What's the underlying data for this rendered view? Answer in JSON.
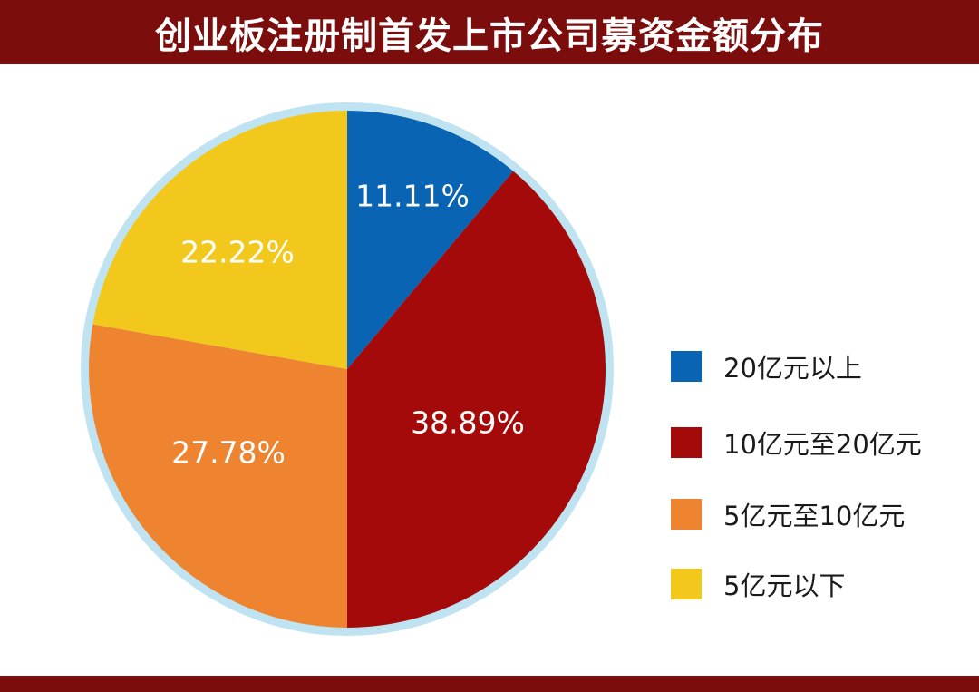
{
  "header": {
    "title": "创业板注册制首发上市公司募资金额分布"
  },
  "colors": {
    "header_bg": "#7c0d0d",
    "pie_ring": "#bfe3f0",
    "label_text": "#ffffff"
  },
  "chart_data": {
    "type": "pie",
    "title": "创业板注册制首发上市公司募资金额分布",
    "start": "top, clockwise",
    "slices": [
      {
        "label": "20亿元以上",
        "value": 11.11,
        "display": "11.11%",
        "color": "#0a64b4"
      },
      {
        "label": "10亿元至20亿元",
        "value": 38.89,
        "display": "38.89%",
        "color": "#a50a0a"
      },
      {
        "label": "5亿元至10亿元",
        "value": 27.78,
        "display": "27.78%",
        "color": "#ee8430"
      },
      {
        "label": "5亿元以下",
        "value": 22.22,
        "display": "22.22%",
        "color": "#f3c81c"
      }
    ],
    "legend_position": "right"
  }
}
